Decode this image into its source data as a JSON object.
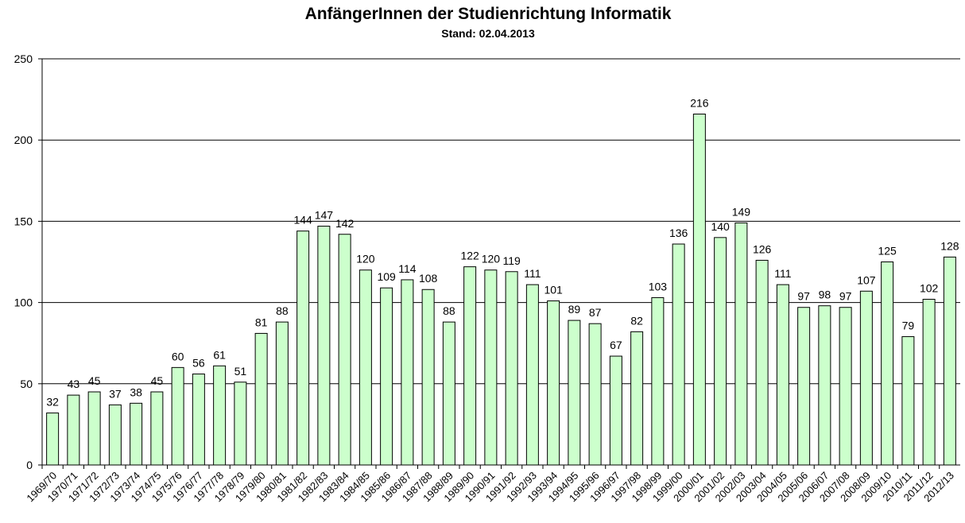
{
  "chart_data": {
    "type": "bar",
    "title": "AnfängerInnen der Studienrichtung Informatik",
    "subtitle": "Stand:  02.04.2013",
    "xlabel": "",
    "ylabel": "",
    "ylim": [
      0,
      250
    ],
    "yticks": [
      0,
      50,
      100,
      150,
      200,
      250
    ],
    "grid": true,
    "legend": "none",
    "bar_color": "#ccffcc",
    "categories": [
      "1969/70",
      "1970/71",
      "1971/72",
      "1972/73",
      "1973/74",
      "1974/75",
      "1975/76",
      "1976/77",
      "1977/78",
      "1978/79",
      "1979/80",
      "1980/81",
      "1981/82",
      "1982/83",
      "1983/84",
      "1984/85",
      "1985/86",
      "1986/87",
      "1987/88",
      "1988/89",
      "1989/90",
      "1990/91",
      "1991/92",
      "1992/93",
      "1993/94",
      "1994/95",
      "1995/96",
      "1996/97",
      "1997/98",
      "1998/99",
      "1999/00",
      "2000/01",
      "2001/02",
      "2002/03",
      "2003/04",
      "2004/05",
      "2005/06",
      "2006/07",
      "2007/08",
      "2008/09",
      "2009/10",
      "2010/11",
      "2011/12",
      "2012/13"
    ],
    "values": [
      32,
      43,
      45,
      37,
      38,
      45,
      60,
      56,
      61,
      51,
      81,
      88,
      144,
      147,
      142,
      120,
      109,
      114,
      108,
      88,
      122,
      120,
      119,
      111,
      101,
      89,
      87,
      67,
      82,
      103,
      136,
      216,
      140,
      149,
      126,
      111,
      97,
      98,
      97,
      107,
      125,
      79,
      102,
      128
    ]
  }
}
